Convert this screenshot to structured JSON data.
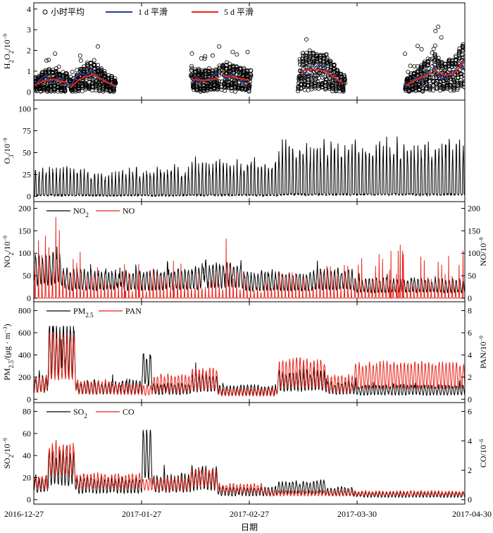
{
  "chart_data": {
    "type": "line",
    "x_axis": {
      "label": "日期",
      "range_days": [
        0,
        124
      ],
      "tick_days": [
        0,
        31,
        62,
        93,
        124
      ],
      "tick_labels": [
        "2016-12-27",
        "2017-01-27",
        "2017-02-27",
        "2017-03-30",
        "2017-04-30"
      ]
    },
    "panels": [
      {
        "id": "h2o2",
        "y_label_left": "H₂O₂/10⁻⁹",
        "y_range": [
          -0.4,
          4.3
        ],
        "y_ticks": [
          0,
          1,
          2,
          3,
          4
        ],
        "legend": [
          "小时平均",
          "1 d 平滑",
          "5 d 平滑"
        ],
        "colors": {
          "hourly": "#000000",
          "smooth_1d": "#2a3a8f",
          "smooth_5d": "#e8231a"
        },
        "segments_days": [
          [
            0,
            9.6
          ],
          [
            10.2,
            23.6
          ],
          [
            45.2,
            53.5
          ],
          [
            54.0,
            62.5
          ],
          [
            76.0,
            89.6
          ],
          [
            106.8,
            114.2
          ],
          [
            114.6,
            124
          ]
        ],
        "smooth_5d": [
          [
            [
              0.3,
              0.3
            ],
            [
              3,
              0.55
            ],
            [
              6,
              0.6
            ],
            [
              9.5,
              0.45
            ]
          ],
          [
            [
              10.5,
              0.2
            ],
            [
              13,
              0.6
            ],
            [
              17,
              0.85
            ],
            [
              21,
              0.45
            ],
            [
              23.5,
              0.3
            ]
          ],
          [
            [
              45.5,
              0.6
            ],
            [
              49,
              0.55
            ],
            [
              53,
              0.65
            ]
          ],
          [
            [
              54.2,
              0.8
            ],
            [
              58,
              0.7
            ],
            [
              62,
              0.55
            ]
          ],
          [
            [
              76.5,
              1.0
            ],
            [
              80,
              1.1
            ],
            [
              84,
              1.0
            ],
            [
              89,
              0.4
            ]
          ],
          [
            [
              107,
              0.3
            ],
            [
              110,
              0.6
            ],
            [
              114,
              0.9
            ]
          ],
          [
            [
              114.8,
              1.1
            ],
            [
              118,
              0.8
            ],
            [
              121,
              0.9
            ],
            [
              124,
              1.5
            ]
          ]
        ],
        "smooth_1d": [
          [
            [
              0.3,
              0.3
            ],
            [
              1.5,
              0.5
            ],
            [
              2.5,
              0.7
            ],
            [
              3.5,
              0.8
            ],
            [
              4.5,
              0.5
            ],
            [
              5.5,
              0.4
            ],
            [
              6.5,
              0.6
            ],
            [
              7.5,
              0.7
            ],
            [
              8.5,
              0.5
            ],
            [
              9.5,
              0.3
            ]
          ],
          [
            [
              10.5,
              0.2
            ],
            [
              12,
              0.7
            ],
            [
              13.5,
              0.9
            ],
            [
              15,
              0.8
            ],
            [
              16.5,
              1.0
            ],
            [
              18,
              0.8
            ],
            [
              19.5,
              0.6
            ],
            [
              21,
              0.5
            ],
            [
              22.5,
              0.3
            ],
            [
              23.5,
              0.2
            ]
          ],
          [
            [
              45.5,
              0.4
            ],
            [
              47,
              0.7
            ],
            [
              48.5,
              0.5
            ],
            [
              50,
              0.6
            ],
            [
              51.5,
              0.8
            ],
            [
              53,
              0.9
            ]
          ],
          [
            [
              54.2,
              0.8
            ],
            [
              55.5,
              0.6
            ],
            [
              57,
              0.9
            ],
            [
              58.5,
              0.7
            ],
            [
              60,
              0.5
            ],
            [
              62,
              0.6
            ]
          ],
          [
            [
              76.5,
              1.1
            ],
            [
              78,
              0.9
            ],
            [
              79.5,
              1.2
            ],
            [
              81,
              1.0
            ],
            [
              82.5,
              1.4
            ],
            [
              84,
              1.1
            ],
            [
              85.5,
              0.8
            ],
            [
              87,
              0.6
            ],
            [
              89,
              0.4
            ]
          ],
          [
            [
              107,
              0.2
            ],
            [
              108.5,
              0.5
            ],
            [
              110,
              0.7
            ],
            [
              111.5,
              0.5
            ],
            [
              113,
              1.0
            ],
            [
              114,
              1.0
            ]
          ],
          [
            [
              114.8,
              1.3
            ],
            [
              116,
              0.9
            ],
            [
              117.5,
              0.6
            ],
            [
              119,
              0.8
            ],
            [
              120.5,
              1.0
            ],
            [
              122,
              1.1
            ],
            [
              123,
              1.4
            ],
            [
              124,
              1.0
            ]
          ]
        ]
      },
      {
        "id": "o3",
        "y_label_left": "O₃/10⁻⁹",
        "y_range": [
          -6,
          110
        ],
        "y_ticks": [
          0,
          25,
          50,
          75,
          100
        ],
        "series": [
          {
            "name": "O₃",
            "color": "#000000",
            "periods": [
              [
                0,
                16,
                22
              ],
              [
                16,
                25,
                17
              ],
              [
                25,
                45,
                22
              ],
              [
                45,
                70,
                27
              ],
              [
                70,
                90,
                40
              ],
              [
                90,
                124,
                42
              ]
            ]
          }
        ]
      },
      {
        "id": "nox",
        "y_label_left": "NO₂/10⁻⁹",
        "y_label_right": "NO/10⁻⁹",
        "y_range": [
          -8,
          215
        ],
        "y_ticks": [
          0,
          50,
          100,
          150,
          200
        ],
        "legend": [
          "NO₂",
          "NO"
        ],
        "series": [
          {
            "name": "NO₂",
            "color": "#000000",
            "periods": [
              [
                0,
                8,
                70
              ],
              [
                8,
                14,
                45
              ],
              [
                14,
                35,
                42
              ],
              [
                35,
                48,
                45
              ],
              [
                48,
                60,
                55
              ],
              [
                60,
                80,
                40
              ],
              [
                80,
                92,
                45
              ],
              [
                92,
                124,
                30
              ]
            ]
          },
          {
            "name": "NO",
            "color": "#e8231a",
            "periods": [
              [
                0,
                8,
                130
              ],
              [
                8,
                14,
                70
              ],
              [
                14,
                40,
                50
              ],
              [
                40,
                60,
                55
              ],
              [
                60,
                80,
                40
              ],
              [
                80,
                92,
                50
              ],
              [
                92,
                124,
                70
              ]
            ]
          }
        ]
      },
      {
        "id": "pm",
        "y_label_left": "PM₂.₅/(μg · m⁻³)",
        "y_label_right": "PAN/10⁻⁹",
        "y_range": [
          -30,
          880
        ],
        "y_ticks": [
          0,
          200,
          400,
          600,
          800
        ],
        "right_ticks": [
          0,
          2,
          4,
          6,
          8
        ],
        "right_range": [
          -0.3,
          8.8
        ],
        "legend": [
          "PM₂.₅",
          "PAN"
        ],
        "series": [
          {
            "name": "PM₂.₅",
            "color": "#000000",
            "periods": [
              [
                0,
                4,
                150
              ],
              [
                4,
                12,
                480
              ],
              [
                12,
                22,
                110
              ],
              [
                22,
                31,
                120
              ],
              [
                31,
                34,
                300
              ],
              [
                34,
                45,
                100
              ],
              [
                45,
                53,
                160
              ],
              [
                53,
                70,
                90
              ],
              [
                70,
                84,
                180
              ],
              [
                84,
                92,
                110
              ],
              [
                92,
                124,
                90
              ]
            ]
          },
          {
            "name": "PAN",
            "color": "#e8231a",
            "periods_ppb": [
              [
                0,
                4,
                1.5
              ],
              [
                4,
                12,
                4.2
              ],
              [
                12,
                22,
                1.2
              ],
              [
                22,
                31,
                1.0
              ],
              [
                31,
                34,
                0.9
              ],
              [
                34,
                45,
                1.5
              ],
              [
                45,
                53,
                2.0
              ],
              [
                53,
                70,
                0.7
              ],
              [
                70,
                84,
                2.5
              ],
              [
                84,
                92,
                1.5
              ],
              [
                92,
                124,
                2.3
              ]
            ]
          }
        ]
      },
      {
        "id": "so2co",
        "y_label_left": "SO₂/10⁻⁹",
        "y_label_right": "CO/10⁻⁶",
        "y_range": [
          -4,
          88
        ],
        "y_ticks": [
          0,
          20,
          40,
          60,
          80
        ],
        "right_ticks": [
          0,
          2,
          4,
          6
        ],
        "right_range": [
          -0.3,
          6.6
        ],
        "legend": [
          "SO₂",
          "CO"
        ],
        "series": [
          {
            "name": "SO₂",
            "color": "#000000",
            "periods": [
              [
                0,
                4,
                15
              ],
              [
                4,
                12,
                30
              ],
              [
                12,
                31,
                14
              ],
              [
                31,
                34,
                45
              ],
              [
                34,
                45,
                16
              ],
              [
                45,
                53,
                20
              ],
              [
                53,
                70,
                8
              ],
              [
                70,
                84,
                12
              ],
              [
                84,
                92,
                8
              ],
              [
                92,
                124,
                5
              ]
            ]
          },
          {
            "name": "CO",
            "color": "#e8231a",
            "periods_ppm": [
              [
                0,
                4,
                1.2
              ],
              [
                4,
                12,
                2.8
              ],
              [
                12,
                31,
                1.3
              ],
              [
                31,
                45,
                1.1
              ],
              [
                45,
                53,
                1.5
              ],
              [
                53,
                66,
                0.8
              ],
              [
                66,
                124,
                0.45
              ]
            ]
          }
        ]
      }
    ]
  }
}
